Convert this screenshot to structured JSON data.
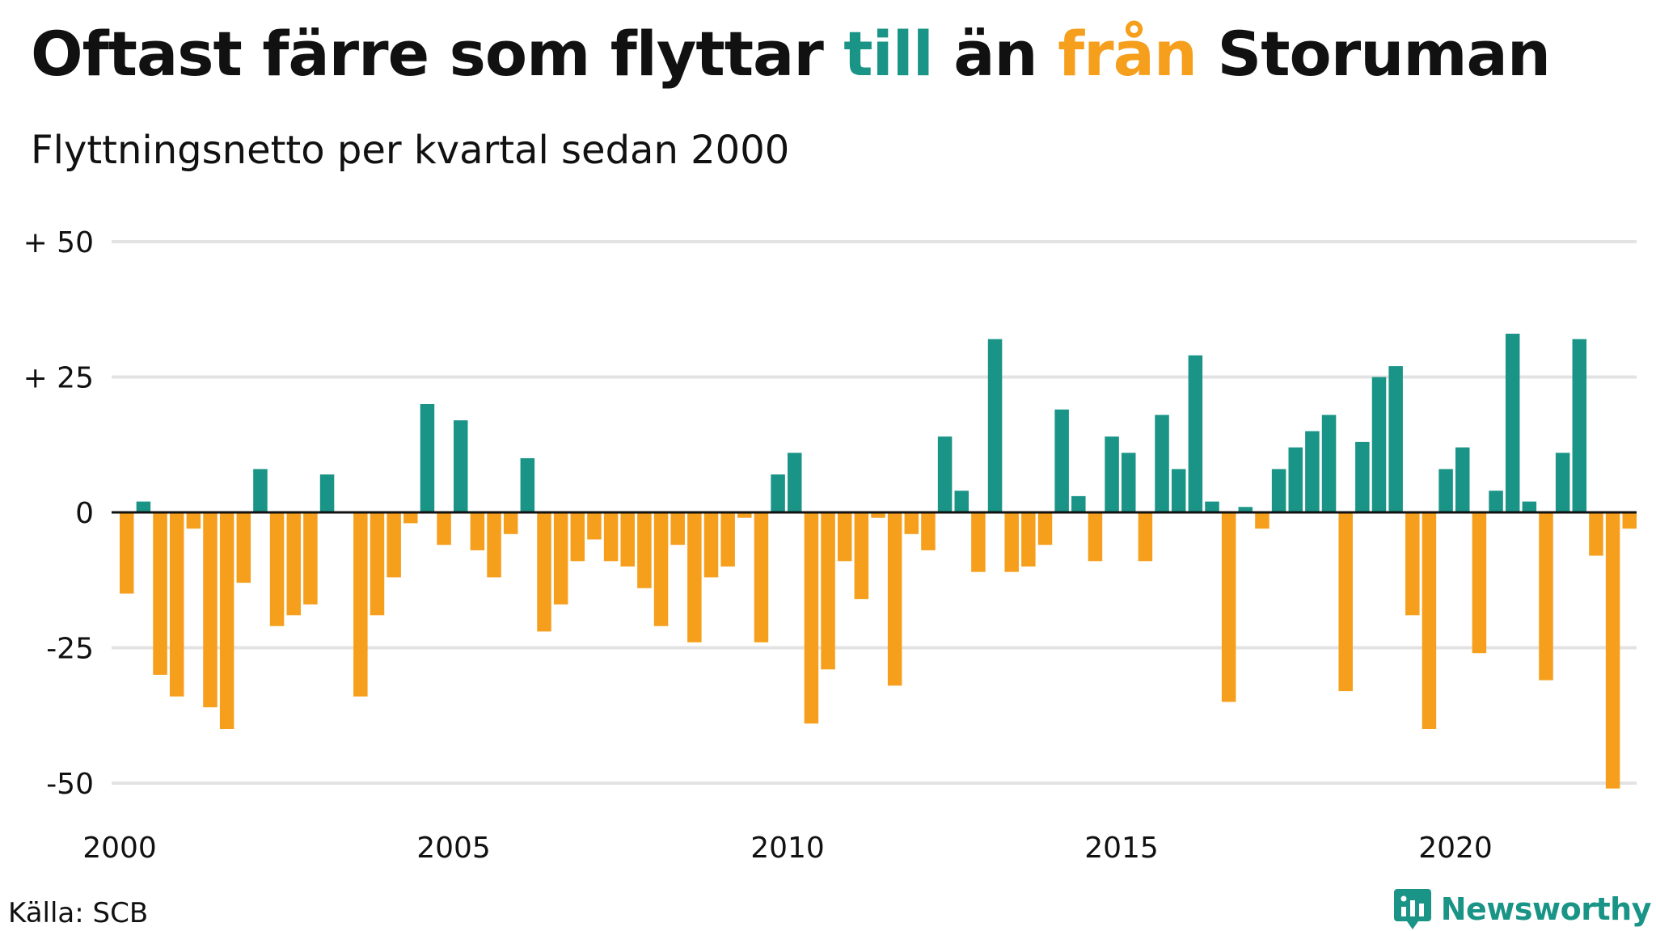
{
  "title": {
    "part1": "Oftast färre som flyttar ",
    "highlight_to": "till",
    "part2": " än ",
    "highlight_from": "från",
    "part3": " Storuman"
  },
  "subtitle": "Flyttningsnetto per kvartal sedan 2000",
  "source": "Källa: SCB",
  "brand": "Newsworthy",
  "colors": {
    "positive": "#199486",
    "negative": "#f59f1c",
    "grid": "#e3e3e3",
    "zero_line": "#111111"
  },
  "chart_data": {
    "type": "bar",
    "x_start_year": 2000,
    "x_tick_labels": [
      "2000",
      "2005",
      "2010",
      "2015",
      "2020"
    ],
    "y_tick_values": [
      50,
      25,
      0,
      -25,
      -50
    ],
    "y_tick_labels": [
      "+ 50",
      "+ 25",
      "0",
      "-25",
      "-50"
    ],
    "ylim": [
      -52,
      52
    ],
    "grid": true,
    "values": [
      -15,
      2,
      -30,
      -34,
      -3,
      -36,
      -40,
      -13,
      8,
      -21,
      -19,
      -17,
      7,
      0,
      -34,
      -19,
      -12,
      -2,
      20,
      -6,
      17,
      -7,
      -12,
      -4,
      10,
      -22,
      -17,
      -9,
      -5,
      -9,
      -10,
      -14,
      -21,
      -6,
      -24,
      -12,
      -10,
      -1,
      -24,
      7,
      11,
      -39,
      -29,
      -9,
      -16,
      -1,
      -32,
      -4,
      -7,
      14,
      4,
      -11,
      32,
      -11,
      -10,
      -6,
      19,
      3,
      -9,
      14,
      11,
      -9,
      18,
      8,
      29,
      2,
      -35,
      1,
      -3,
      8,
      12,
      15,
      18,
      -33,
      13,
      25,
      27,
      -19,
      -40,
      8,
      12,
      -26,
      4,
      33,
      2,
      -31,
      11,
      32,
      -8,
      -51,
      -3
    ]
  }
}
